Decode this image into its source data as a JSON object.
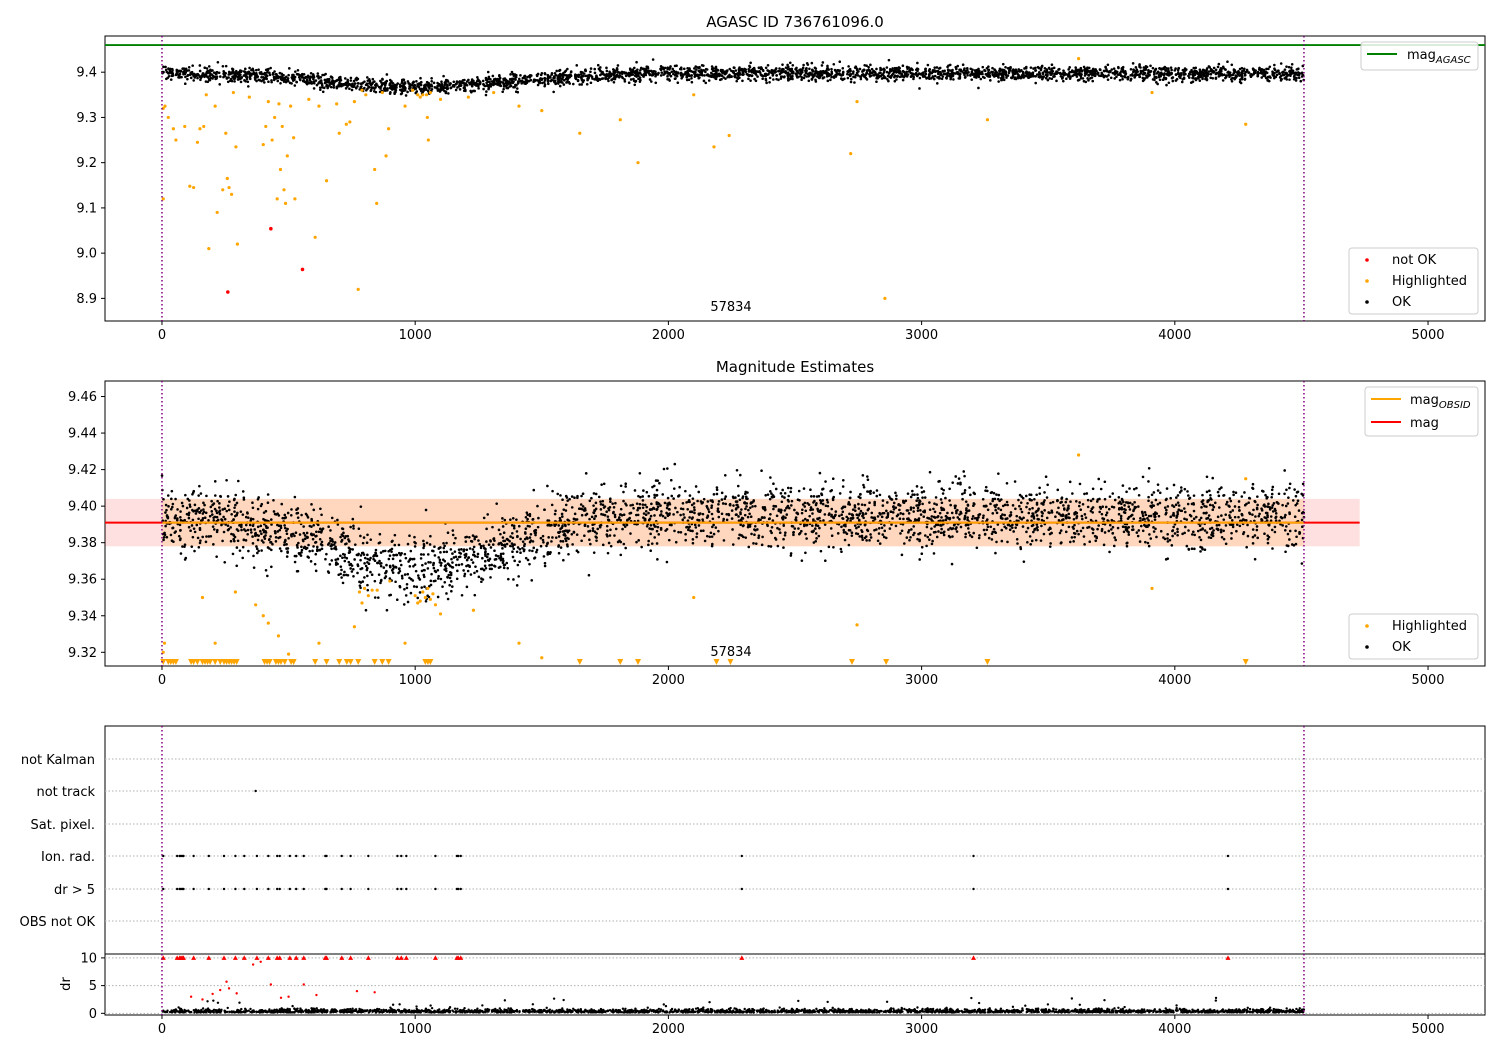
{
  "chart_data": [
    {
      "type": "scatter",
      "title": "AGASC ID 736761096.0",
      "xlim": [
        -225,
        5225
      ],
      "ylim": [
        8.85,
        9.48
      ],
      "x_ticks": [
        0,
        1000,
        2000,
        3000,
        4000,
        5000
      ],
      "y_ticks": [
        8.9,
        9.0,
        9.1,
        9.2,
        9.3,
        9.4
      ],
      "y_tick_labels": [
        "8.9",
        "9.0",
        "9.1",
        "9.2",
        "9.3",
        "9.4"
      ],
      "vlines": [
        0,
        4510
      ],
      "annotation": {
        "text": "57834",
        "x": 2250,
        "y": 8.87
      },
      "mag_agasc": 9.46,
      "legend_upper": {
        "position": "upper right",
        "entries": [
          {
            "label": "mag",
            "sub": "AGASC",
            "color": "#008000"
          }
        ]
      },
      "legend_lower": {
        "position": "lower right",
        "entries": [
          {
            "label": "not OK",
            "color": "#ff0000"
          },
          {
            "label": "Highlighted",
            "color": "#ffa500"
          },
          {
            "label": "OK",
            "color": "#000000"
          }
        ]
      },
      "ok_points": {
        "x_range": [
          0,
          4510
        ],
        "count": 3200,
        "profile": [
          [
            0,
            9.398
          ],
          [
            200,
            9.395
          ],
          [
            500,
            9.388
          ],
          [
            800,
            9.372
          ],
          [
            1000,
            9.366
          ],
          [
            1200,
            9.372
          ],
          [
            1400,
            9.38
          ],
          [
            1600,
            9.39
          ],
          [
            1900,
            9.398
          ],
          [
            4510,
            9.397
          ]
        ],
        "scatter": 0.008
      },
      "not_ok_points": [
        [
          260,
          8.914
        ],
        [
          430,
          9.054
        ],
        [
          555,
          8.964
        ]
      ],
      "highlighted_points": [
        [
          5,
          9.32
        ],
        [
          12,
          9.325
        ],
        [
          5,
          9.12
        ],
        [
          25,
          9.3
        ],
        [
          45,
          9.275
        ],
        [
          55,
          9.25
        ],
        [
          90,
          9.28
        ],
        [
          110,
          9.148
        ],
        [
          125,
          9.145
        ],
        [
          140,
          9.245
        ],
        [
          150,
          9.275
        ],
        [
          165,
          9.28
        ],
        [
          175,
          9.35
        ],
        [
          185,
          9.01
        ],
        [
          210,
          9.325
        ],
        [
          218,
          9.09
        ],
        [
          240,
          9.14
        ],
        [
          252,
          9.265
        ],
        [
          258,
          9.165
        ],
        [
          265,
          9.145
        ],
        [
          275,
          9.13
        ],
        [
          282,
          9.355
        ],
        [
          292,
          9.235
        ],
        [
          298,
          9.02
        ],
        [
          345,
          9.345
        ],
        [
          400,
          9.24
        ],
        [
          410,
          9.28
        ],
        [
          420,
          9.335
        ],
        [
          435,
          9.25
        ],
        [
          445,
          9.3
        ],
        [
          455,
          9.12
        ],
        [
          462,
          9.33
        ],
        [
          468,
          9.185
        ],
        [
          475,
          9.28
        ],
        [
          482,
          9.14
        ],
        [
          488,
          9.11
        ],
        [
          495,
          9.215
        ],
        [
          508,
          9.325
        ],
        [
          520,
          9.255
        ],
        [
          525,
          9.12
        ],
        [
          580,
          9.34
        ],
        [
          605,
          9.035
        ],
        [
          620,
          9.325
        ],
        [
          650,
          9.16
        ],
        [
          690,
          9.33
        ],
        [
          700,
          9.265
        ],
        [
          728,
          9.285
        ],
        [
          742,
          9.29
        ],
        [
          760,
          9.335
        ],
        [
          775,
          8.92
        ],
        [
          790,
          9.36
        ],
        [
          805,
          9.35
        ],
        [
          840,
          9.185
        ],
        [
          848,
          9.11
        ],
        [
          870,
          9.355
        ],
        [
          885,
          9.215
        ],
        [
          895,
          9.275
        ],
        [
          960,
          9.325
        ],
        [
          990,
          9.36
        ],
        [
          1010,
          9.35
        ],
        [
          1020,
          9.345
        ],
        [
          1030,
          9.35
        ],
        [
          1045,
          9.35
        ],
        [
          1060,
          9.355
        ],
        [
          1048,
          9.3
        ],
        [
          1052,
          9.25
        ],
        [
          1100,
          9.34
        ],
        [
          1210,
          9.345
        ],
        [
          1310,
          9.355
        ],
        [
          1410,
          9.325
        ],
        [
          1500,
          9.315
        ],
        [
          1650,
          9.265
        ],
        [
          1810,
          9.295
        ],
        [
          1880,
          9.2
        ],
        [
          2100,
          9.35
        ],
        [
          2180,
          9.235
        ],
        [
          2240,
          9.26
        ],
        [
          2720,
          9.22
        ],
        [
          2745,
          9.335
        ],
        [
          2855,
          8.9
        ],
        [
          3260,
          9.295
        ],
        [
          3620,
          9.43
        ],
        [
          3910,
          9.355
        ],
        [
          4280,
          9.285
        ]
      ]
    },
    {
      "type": "scatter",
      "title": "Magnitude Estimates",
      "xlim": [
        -225,
        5225
      ],
      "ylim": [
        9.3125,
        9.4685
      ],
      "x_ticks": [
        0,
        1000,
        2000,
        3000,
        4000,
        5000
      ],
      "y_ticks": [
        9.32,
        9.34,
        9.36,
        9.38,
        9.4,
        9.42,
        9.44,
        9.46
      ],
      "y_tick_labels": [
        "9.32",
        "9.34",
        "9.36",
        "9.38",
        "9.40",
        "9.42",
        "9.44",
        "9.46"
      ],
      "vlines": [
        0,
        4510
      ],
      "annotation": {
        "text": "57834",
        "x": 2250,
        "y": 9.316
      },
      "mag": 9.391,
      "mag_band": [
        9.378,
        9.404
      ],
      "mag_line_x": [
        -225,
        4730
      ],
      "mag_obsid_x": [
        0,
        4510
      ],
      "legend_upper": {
        "position": "upper right",
        "entries": [
          {
            "label": "mag",
            "sub": "OBSID",
            "color": "#ffa500"
          },
          {
            "label": "mag",
            "sub": "",
            "color": "#ff0000"
          }
        ]
      },
      "legend_lower": {
        "position": "lower right",
        "entries": [
          {
            "label": "Highlighted",
            "color": "#ffa500"
          },
          {
            "label": "OK",
            "color": "#000000"
          }
        ]
      },
      "ok_points": {
        "x_range": [
          0,
          4510
        ],
        "count": 3200,
        "profile": [
          [
            0,
            9.395
          ],
          [
            200,
            9.393
          ],
          [
            500,
            9.385
          ],
          [
            800,
            9.372
          ],
          [
            1000,
            9.366
          ],
          [
            1200,
            9.372
          ],
          [
            1400,
            9.38
          ],
          [
            1600,
            9.39
          ],
          [
            1900,
            9.396
          ],
          [
            4510,
            9.394
          ]
        ],
        "scatter": 0.009
      },
      "highlighted_points": [
        [
          5,
          9.32
        ],
        [
          10,
          9.325
        ],
        [
          160,
          9.35
        ],
        [
          210,
          9.325
        ],
        [
          290,
          9.353
        ],
        [
          370,
          9.346
        ],
        [
          400,
          9.34
        ],
        [
          420,
          9.336
        ],
        [
          460,
          9.329
        ],
        [
          500,
          9.319
        ],
        [
          620,
          9.325
        ],
        [
          760,
          9.334
        ],
        [
          780,
          9.353
        ],
        [
          790,
          9.347
        ],
        [
          800,
          9.355
        ],
        [
          815,
          9.351
        ],
        [
          830,
          9.354
        ],
        [
          850,
          9.354
        ],
        [
          900,
          9.359
        ],
        [
          960,
          9.325
        ],
        [
          1000,
          9.351
        ],
        [
          1010,
          9.347
        ],
        [
          1020,
          9.348
        ],
        [
          1030,
          9.353
        ],
        [
          1040,
          9.35
        ],
        [
          1050,
          9.355
        ],
        [
          1060,
          9.349
        ],
        [
          1070,
          9.352
        ],
        [
          1080,
          9.346
        ],
        [
          1100,
          9.341
        ],
        [
          1230,
          9.343
        ],
        [
          1410,
          9.325
        ],
        [
          1500,
          9.317
        ],
        [
          2100,
          9.35
        ],
        [
          2745,
          9.335
        ],
        [
          3620,
          9.428
        ],
        [
          3910,
          9.355
        ],
        [
          4280,
          9.415
        ]
      ],
      "below_range_markers": [
        5,
        25,
        35,
        45,
        55,
        115,
        125,
        140,
        160,
        170,
        180,
        190,
        210,
        230,
        245,
        255,
        265,
        275,
        285,
        295,
        405,
        415,
        425,
        450,
        460,
        470,
        485,
        510,
        520,
        605,
        650,
        700,
        730,
        745,
        775,
        840,
        870,
        895,
        1040,
        1050,
        1060,
        1650,
        1810,
        1880,
        2190,
        2245,
        2725,
        2860,
        3260,
        4280
      ]
    },
    {
      "type": "scatter",
      "xlim": [
        -225,
        5225
      ],
      "categories": [
        "not Kalman",
        "not track",
        "Sat. pixel.",
        "Ion. rad.",
        "dr > 5",
        "OBS not OK"
      ],
      "vlines": [
        0,
        4510
      ],
      "flag_points": {
        "not track": [
          370
        ],
        "Ion. rad.": [
          5,
          60,
          70,
          75,
          80,
          85,
          125,
          185,
          245,
          290,
          325,
          375,
          420,
          455,
          465,
          505,
          530,
          560,
          645,
          650,
          710,
          745,
          815,
          930,
          945,
          965,
          1080,
          1165,
          1170,
          1180,
          2290,
          3205,
          4210
        ],
        "dr > 5": [
          5,
          60,
          70,
          75,
          80,
          85,
          125,
          185,
          245,
          290,
          325,
          375,
          420,
          455,
          465,
          505,
          530,
          560,
          645,
          650,
          710,
          745,
          815,
          930,
          945,
          965,
          1080,
          1165,
          1170,
          1180,
          2290,
          3205,
          4210
        ]
      }
    },
    {
      "type": "scatter",
      "ylabel": "dr",
      "xlim": [
        -225,
        5225
      ],
      "ylim": [
        -0.3,
        10.7
      ],
      "x_ticks": [
        0,
        1000,
        2000,
        3000,
        4000,
        5000
      ],
      "y_ticks": [
        0,
        5,
        10
      ],
      "y_tick_labels": [
        "0",
        "5",
        "10"
      ],
      "vlines": [
        0,
        4510
      ],
      "clip_points": [
        5,
        60,
        70,
        75,
        80,
        85,
        125,
        185,
        245,
        290,
        325,
        375,
        420,
        455,
        465,
        505,
        530,
        560,
        645,
        650,
        710,
        745,
        815,
        930,
        945,
        965,
        1080,
        1165,
        1170,
        1180,
        2290,
        3205,
        4210
      ],
      "red_points": [
        [
          115,
          3.0
        ],
        [
          160,
          2.5
        ],
        [
          200,
          3.5
        ],
        [
          230,
          4.2
        ],
        [
          255,
          5.7
        ],
        [
          265,
          4.5
        ],
        [
          295,
          3.6
        ],
        [
          360,
          8.8
        ],
        [
          390,
          9.3
        ],
        [
          430,
          5.2
        ],
        [
          470,
          2.8
        ],
        [
          500,
          3.0
        ],
        [
          560,
          5.2
        ],
        [
          610,
          3.3
        ],
        [
          770,
          4.0
        ],
        [
          840,
          3.8
        ]
      ],
      "ok_points": {
        "x_range": [
          0,
          4510
        ],
        "count": 2600,
        "mean": 0.3,
        "scatter": 0.3
      }
    }
  ]
}
